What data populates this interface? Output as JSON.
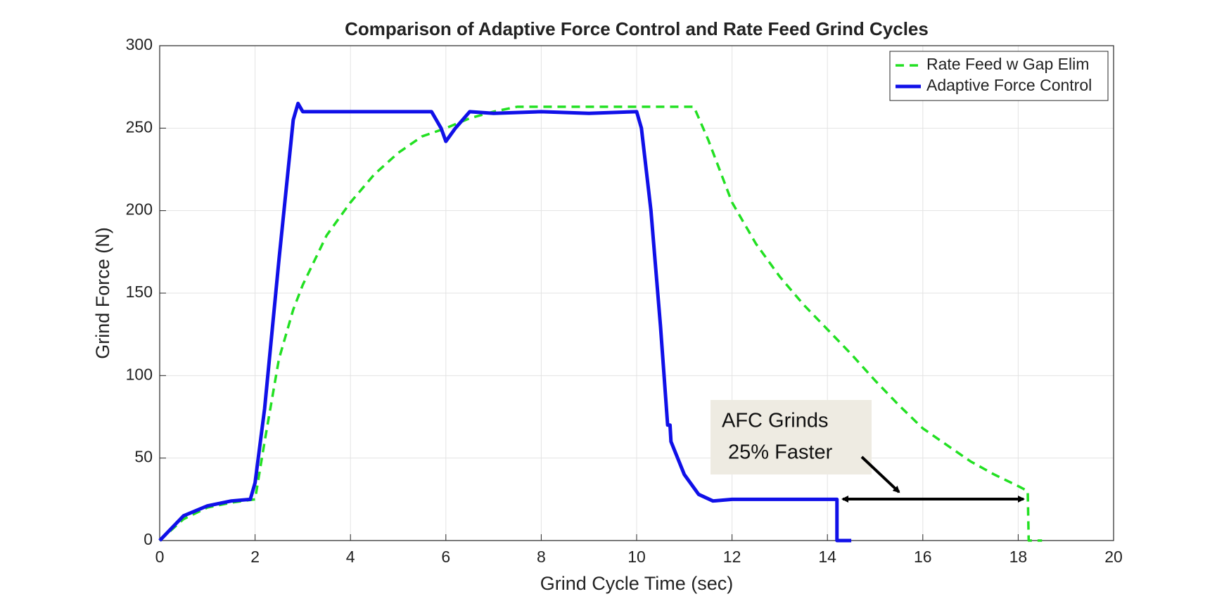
{
  "chart_data": {
    "type": "line",
    "title": "Comparison of Adaptive Force Control and Rate Feed Grind Cycles",
    "xlabel": "Grind Cycle Time (sec)",
    "ylabel": "Grind Force (N)",
    "xlim": [
      0,
      20
    ],
    "xticks": [
      0,
      2,
      4,
      6,
      8,
      10,
      12,
      14,
      16,
      18,
      20
    ],
    "ylim": [
      0,
      300
    ],
    "yticks": [
      0,
      50,
      100,
      150,
      200,
      250,
      300
    ],
    "grid": true,
    "legend": "upper right",
    "annotation": [
      "AFC Grinds",
      "25% Faster"
    ],
    "series": [
      {
        "name": "Rate Feed w Gap Elim",
        "color": "#22e022",
        "style": "dashed",
        "x": [
          0,
          0.5,
          1,
          1.5,
          2,
          2.2,
          2.5,
          2.8,
          3,
          3.5,
          4,
          4.5,
          5,
          5.5,
          6,
          6.5,
          7,
          7.5,
          8,
          9,
          10,
          11,
          11.2,
          11.5,
          12,
          12.5,
          13,
          13.5,
          14,
          14.5,
          15,
          15.5,
          16,
          16.5,
          17,
          17.5,
          18,
          18.2,
          18.22,
          18.5
        ],
        "values": [
          0,
          13,
          20,
          23,
          25,
          60,
          110,
          140,
          155,
          185,
          205,
          222,
          235,
          245,
          250,
          256,
          260,
          263,
          263,
          263,
          263,
          263,
          263,
          243,
          205,
          180,
          160,
          143,
          128,
          113,
          97,
          82,
          68,
          58,
          48,
          40,
          33,
          30,
          0,
          0
        ]
      },
      {
        "name": "Adaptive Force Control",
        "color": "#1010e8",
        "style": "solid",
        "x": [
          0,
          0.5,
          1,
          1.5,
          1.9,
          2,
          2.2,
          2.5,
          2.8,
          2.9,
          3,
          3.5,
          4,
          5,
          5.7,
          5.9,
          6,
          6.2,
          6.5,
          7,
          8,
          9,
          10,
          10.1,
          10.3,
          10.5,
          10.65,
          10.7,
          10.72,
          11,
          11.3,
          11.6,
          12,
          12.5,
          13,
          14,
          14.2,
          14.2,
          14.5
        ],
        "values": [
          0,
          15,
          21,
          24,
          25,
          35,
          80,
          170,
          255,
          265,
          260,
          260,
          260,
          260,
          260,
          250,
          242,
          250,
          260,
          259,
          260,
          259,
          260,
          250,
          200,
          130,
          70,
          70,
          60,
          40,
          28,
          24,
          25,
          25,
          25,
          25,
          25,
          0,
          0
        ]
      }
    ]
  }
}
